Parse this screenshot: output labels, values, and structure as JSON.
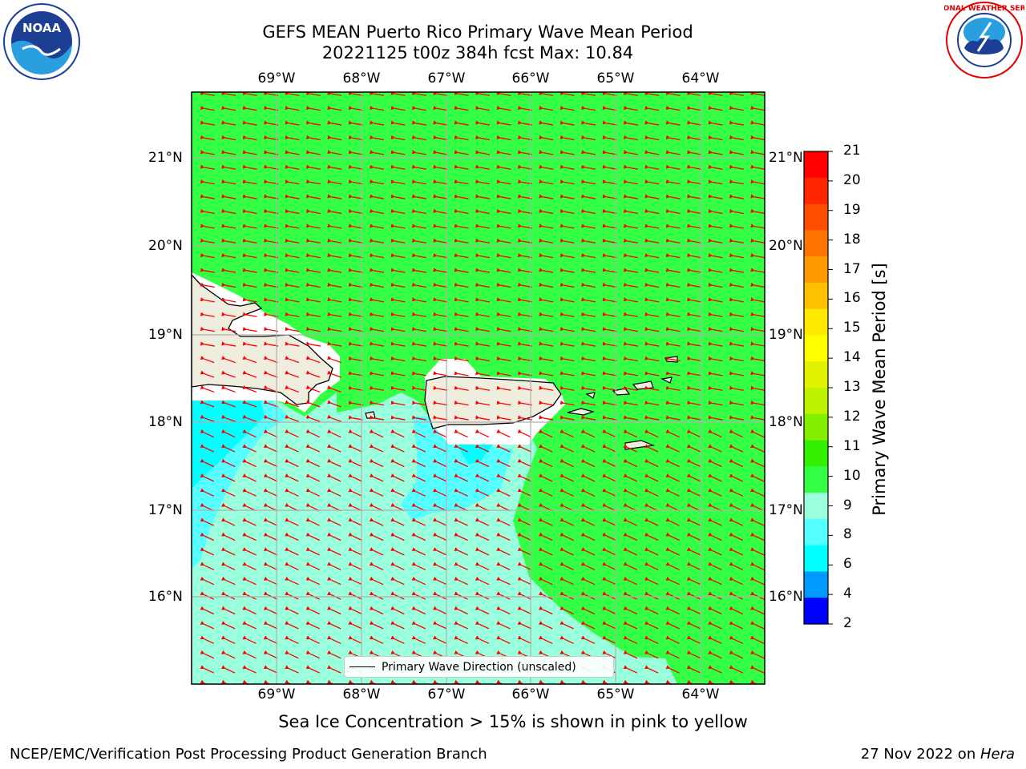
{
  "title_line1": "GEFS MEAN Puerto Rico Primary Wave Mean Period",
  "title_line2": "20221125 t00z 384h fcst   Max: 10.84",
  "caption": "Sea Ice Concentration > 15% is shown in pink to yellow",
  "footer_left": "NCEP/EMC/Verification Post Processing Product Generation Branch",
  "footer_right_date": "27 Nov 2022 on ",
  "footer_right_host": "Hera",
  "legend_label": "Primary Wave Direction (unscaled)",
  "colorbar": {
    "title": "Primary Wave Mean Period [s]",
    "ticks": [
      "21",
      "20",
      "19",
      "18",
      "17",
      "16",
      "15",
      "14",
      "13",
      "12",
      "11",
      "10",
      "9",
      "8",
      "6",
      "4",
      "2"
    ],
    "colors": [
      "#ff0000",
      "#ff2600",
      "#ff4d00",
      "#ff7300",
      "#ff9900",
      "#ffc000",
      "#ffea00",
      "#ffff00",
      "#e1f200",
      "#bdf200",
      "#84f000",
      "#33f000",
      "#33ff44",
      "#99ffdd",
      "#55ffff",
      "#00ffff",
      "#0099ff",
      "#0000ff"
    ]
  },
  "latitudes": [
    "21°N",
    "20°N",
    "19°N",
    "18°N",
    "17°N",
    "16°N"
  ],
  "longitudes": [
    "69°W",
    "68°W",
    "67°W",
    "66°W",
    "65°W",
    "64°W"
  ],
  "logos": {
    "left": "NOAA",
    "right": "NATIONAL WEATHER SERVICE"
  },
  "colors": {
    "sea_high": "#33ff44",
    "sea_low": "#99ffdd",
    "sea_mid": "#55ffff",
    "sea_cyan": "#00ffff",
    "land": "#efeede",
    "arrow": "#ff0000"
  }
}
